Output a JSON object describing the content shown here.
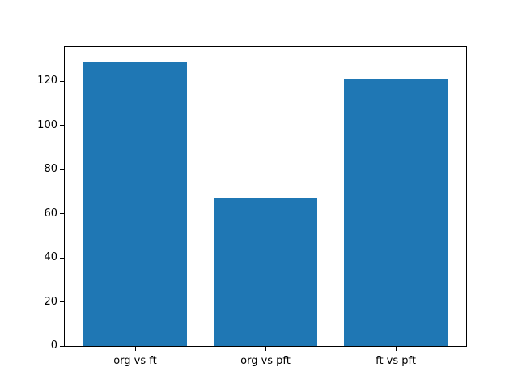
{
  "chart_data": {
    "type": "bar",
    "title": "",
    "xlabel": "",
    "ylabel": "",
    "categories": [
      "org vs ft",
      "org vs pft",
      "ft vs pft"
    ],
    "values": [
      129,
      67,
      121
    ],
    "yticks": [
      0,
      20,
      40,
      60,
      80,
      100,
      120
    ],
    "ylim": [
      0,
      135.45
    ],
    "bar_width_fraction": 0.8,
    "x_margin_fraction": 0.05,
    "bar_color": "#1f77b4",
    "spine_color": "#000000",
    "text_color": "#000000",
    "background_color": "#ffffff",
    "grid": false,
    "legend_position": "none"
  }
}
